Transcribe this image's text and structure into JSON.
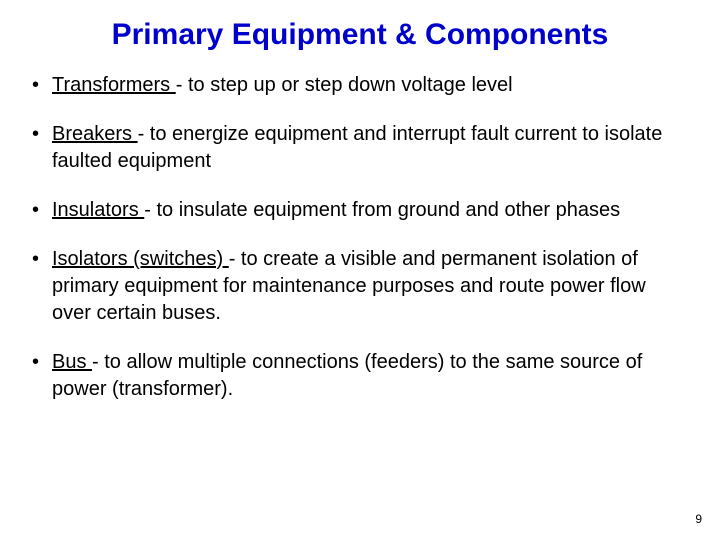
{
  "title": "Primary Equipment & Components",
  "title_color": "#0000cc",
  "body_fontsize": 20,
  "title_fontsize": 30,
  "background_color": "#ffffff",
  "bullets": [
    {
      "term": "Transformers ",
      "desc": "- to step up or step down voltage level"
    },
    {
      "term": "Breakers ",
      "desc": "- to energize equipment and interrupt fault current to isolate faulted equipment"
    },
    {
      "term": "Insulators ",
      "desc": "- to insulate equipment from ground and other phases"
    },
    {
      "term": "Isolators (switches) ",
      "desc": "- to create a visible and permanent isolation of primary equipment for maintenance purposes and route power flow over certain buses."
    },
    {
      "term": "Bus ",
      "desc": "- to allow multiple connections (feeders) to the same source of power (transformer)."
    }
  ],
  "page_number": "9"
}
